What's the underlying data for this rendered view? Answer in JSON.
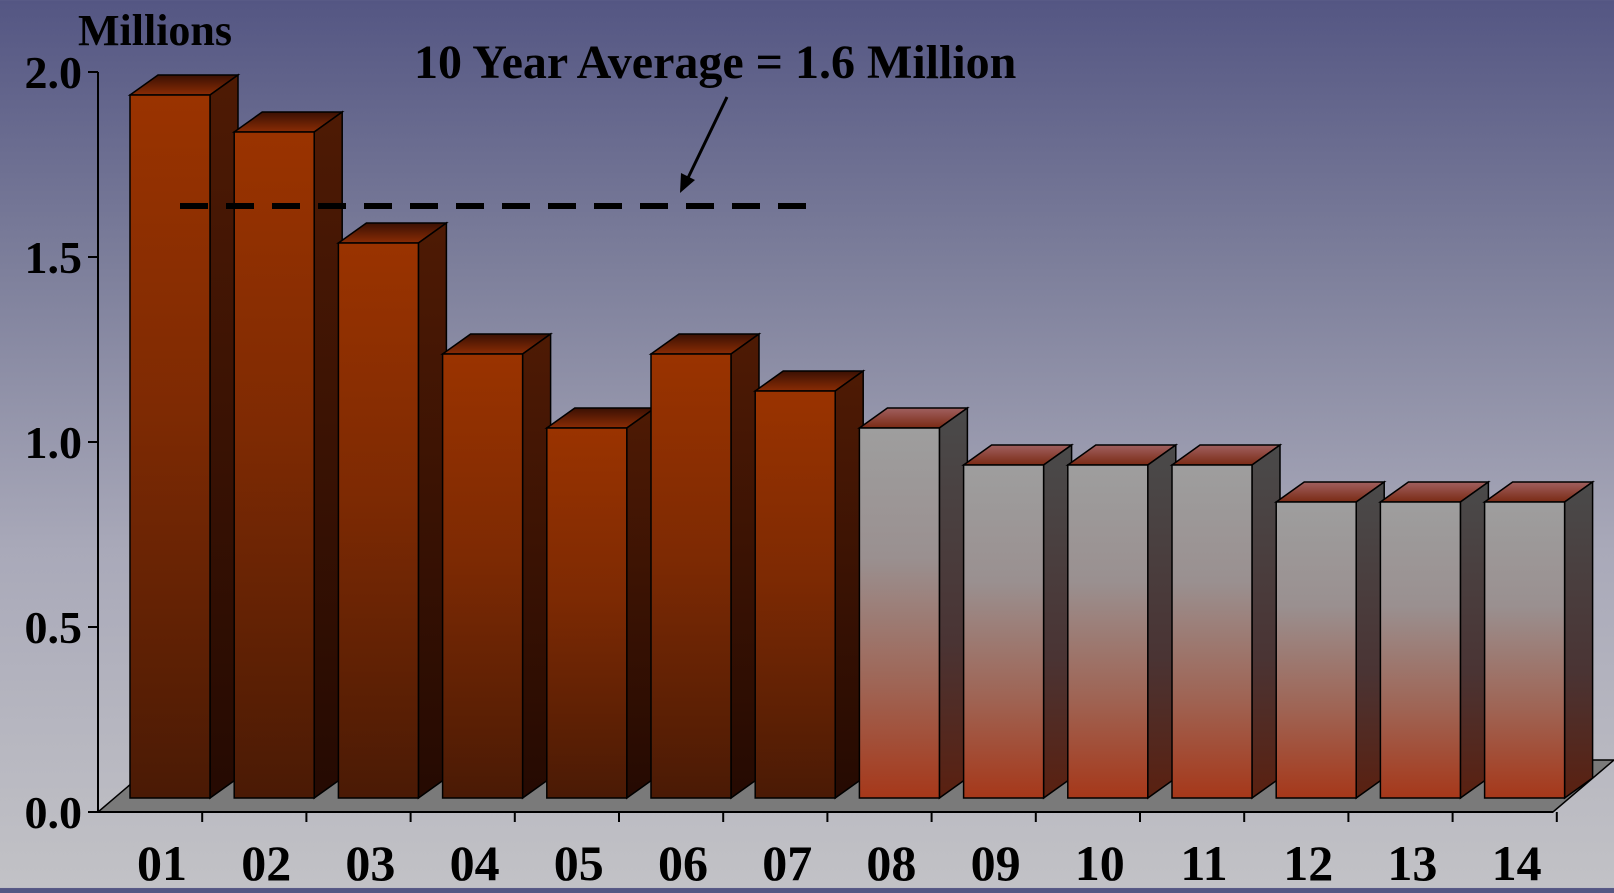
{
  "chart_data": {
    "type": "bar",
    "ylabel": "Millions",
    "annotation": "10 Year Average = 1.6 Million",
    "average": 1.6,
    "categories": [
      "01",
      "02",
      "03",
      "04",
      "05",
      "06",
      "07",
      "08",
      "09",
      "10",
      "11",
      "12",
      "13",
      "14"
    ],
    "values": [
      1.9,
      1.8,
      1.5,
      1.2,
      1.0,
      1.2,
      1.1,
      1.0,
      0.9,
      0.9,
      0.9,
      0.8,
      0.8,
      0.8
    ],
    "ylim": [
      0,
      2.0
    ],
    "yticks": [
      "0.0",
      "0.5",
      "1.0",
      "1.5",
      "2.0"
    ],
    "grid": false,
    "colors": {
      "actual_bar": "#9a3200",
      "projected_bar_top": "#9c9c9c",
      "projected_bar_bottom": "#a6381a",
      "average_line": "#000000"
    }
  }
}
